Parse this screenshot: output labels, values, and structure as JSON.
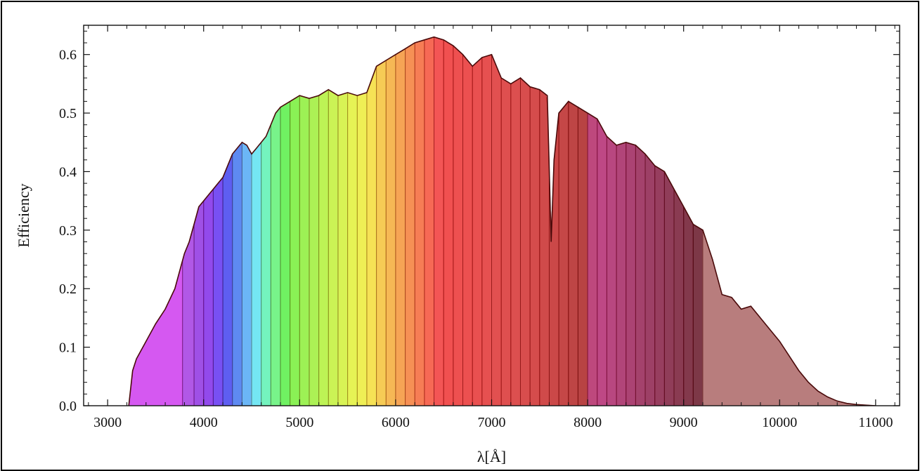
{
  "chart_data": {
    "type": "area",
    "title": "",
    "xlabel": "λ[Å]",
    "ylabel": "Efficiency",
    "xlim": [
      2750,
      11250
    ],
    "ylim": [
      0,
      0.65
    ],
    "x_ticks": [
      3000,
      4000,
      5000,
      6000,
      7000,
      8000,
      9000,
      10000,
      11000
    ],
    "x_tick_labels": [
      "3000",
      "4000",
      "5000",
      "6000",
      "7000",
      "8000",
      "9000",
      "10000",
      "11000"
    ],
    "y_ticks": [
      0,
      0.1,
      0.2,
      0.3,
      0.4,
      0.5,
      0.6
    ],
    "y_tick_labels": [
      "0.0",
      "0.1",
      "0.2",
      "0.3",
      "0.4",
      "0.5",
      "0.6"
    ],
    "grid": false,
    "legend": "none",
    "envelope": {
      "x": [
        3220,
        3260,
        3300,
        3400,
        3500,
        3600,
        3700,
        3750,
        3800,
        3850,
        3900,
        3950,
        4000,
        4050,
        4100,
        4150,
        4200,
        4250,
        4300,
        4350,
        4400,
        4450,
        4500,
        4550,
        4600,
        4650,
        4700,
        4750,
        4800,
        4900,
        5000,
        5100,
        5200,
        5300,
        5400,
        5500,
        5600,
        5700,
        5800,
        5900,
        6000,
        6100,
        6200,
        6300,
        6400,
        6500,
        6600,
        6700,
        6800,
        6900,
        7000,
        7100,
        7200,
        7300,
        7400,
        7500,
        7580,
        7620,
        7650,
        7700,
        7800,
        7900,
        8000,
        8100,
        8200,
        8300,
        8400,
        8500,
        8600,
        8700,
        8800,
        8900,
        9000,
        9100,
        9200,
        9300,
        9400,
        9500,
        9600,
        9700,
        9800,
        9900,
        10000,
        10100,
        10200,
        10300,
        10400,
        10500,
        10600,
        10700,
        10800,
        10900,
        11000
      ],
      "y": [
        0.0,
        0.06,
        0.08,
        0.11,
        0.14,
        0.165,
        0.2,
        0.23,
        0.26,
        0.28,
        0.31,
        0.34,
        0.35,
        0.36,
        0.37,
        0.38,
        0.39,
        0.41,
        0.43,
        0.44,
        0.45,
        0.445,
        0.43,
        0.44,
        0.45,
        0.46,
        0.48,
        0.5,
        0.51,
        0.52,
        0.53,
        0.525,
        0.53,
        0.54,
        0.53,
        0.535,
        0.53,
        0.535,
        0.58,
        0.59,
        0.6,
        0.61,
        0.62,
        0.625,
        0.63,
        0.625,
        0.615,
        0.6,
        0.58,
        0.595,
        0.6,
        0.56,
        0.55,
        0.56,
        0.545,
        0.54,
        0.53,
        0.28,
        0.42,
        0.5,
        0.52,
        0.51,
        0.5,
        0.49,
        0.46,
        0.445,
        0.45,
        0.445,
        0.43,
        0.41,
        0.4,
        0.37,
        0.34,
        0.31,
        0.3,
        0.25,
        0.19,
        0.185,
        0.165,
        0.17,
        0.15,
        0.13,
        0.11,
        0.085,
        0.06,
        0.04,
        0.025,
        0.015,
        0.008,
        0.004,
        0.002,
        0.001,
        0.0
      ]
    },
    "filter_bands": [
      {
        "from": 3220,
        "to": 3780,
        "color": "#cc33ee"
      },
      {
        "from": 3780,
        "to": 3900,
        "color": "#a033e0"
      },
      {
        "from": 3900,
        "to": 4000,
        "color": "#8a2ae0"
      },
      {
        "from": 4000,
        "to": 4100,
        "color": "#7a22e8"
      },
      {
        "from": 4100,
        "to": 4200,
        "color": "#5a2af0"
      },
      {
        "from": 4200,
        "to": 4300,
        "color": "#3a3aee"
      },
      {
        "from": 4300,
        "to": 4400,
        "color": "#3a70ee"
      },
      {
        "from": 4400,
        "to": 4500,
        "color": "#4aa6f4"
      },
      {
        "from": 4500,
        "to": 4600,
        "color": "#55e0f0"
      },
      {
        "from": 4600,
        "to": 4700,
        "color": "#55f0b0"
      },
      {
        "from": 4700,
        "to": 4800,
        "color": "#5af070"
      },
      {
        "from": 4800,
        "to": 4900,
        "color": "#50ee40"
      },
      {
        "from": 4900,
        "to": 5000,
        "color": "#70ee30"
      },
      {
        "from": 5000,
        "to": 5100,
        "color": "#88ee30"
      },
      {
        "from": 5100,
        "to": 5200,
        "color": "#9aee30"
      },
      {
        "from": 5200,
        "to": 5300,
        "color": "#aef030"
      },
      {
        "from": 5300,
        "to": 5400,
        "color": "#c0f030"
      },
      {
        "from": 5400,
        "to": 5500,
        "color": "#d0f030"
      },
      {
        "from": 5500,
        "to": 5600,
        "color": "#e0f030"
      },
      {
        "from": 5600,
        "to": 5700,
        "color": "#ecec30"
      },
      {
        "from": 5700,
        "to": 5800,
        "color": "#f4dc30"
      },
      {
        "from": 5800,
        "to": 5900,
        "color": "#f4c030"
      },
      {
        "from": 5900,
        "to": 6000,
        "color": "#f4a830"
      },
      {
        "from": 6000,
        "to": 6100,
        "color": "#f49030"
      },
      {
        "from": 6100,
        "to": 6200,
        "color": "#f47830"
      },
      {
        "from": 6200,
        "to": 6300,
        "color": "#f46030"
      },
      {
        "from": 6300,
        "to": 6400,
        "color": "#f44830"
      },
      {
        "from": 6400,
        "to": 6500,
        "color": "#f03030"
      },
      {
        "from": 6500,
        "to": 6600,
        "color": "#ee2a2a"
      },
      {
        "from": 6600,
        "to": 6700,
        "color": "#ea2a2a"
      },
      {
        "from": 6700,
        "to": 6800,
        "color": "#e82a2a"
      },
      {
        "from": 6800,
        "to": 6900,
        "color": "#e42a2a"
      },
      {
        "from": 6900,
        "to": 7000,
        "color": "#e02a2a"
      },
      {
        "from": 7000,
        "to": 7100,
        "color": "#dc2a2a"
      },
      {
        "from": 7100,
        "to": 7200,
        "color": "#d82828"
      },
      {
        "from": 7200,
        "to": 7300,
        "color": "#d42828"
      },
      {
        "from": 7300,
        "to": 7400,
        "color": "#d02626"
      },
      {
        "from": 7400,
        "to": 7500,
        "color": "#cc2424"
      },
      {
        "from": 7500,
        "to": 7600,
        "color": "#c62222"
      },
      {
        "from": 7600,
        "to": 7700,
        "color": "#c02020"
      },
      {
        "from": 7700,
        "to": 7800,
        "color": "#b81e1e"
      },
      {
        "from": 7800,
        "to": 7900,
        "color": "#b01c1c"
      },
      {
        "from": 7900,
        "to": 8000,
        "color": "#a81a1a"
      },
      {
        "from": 8000,
        "to": 8100,
        "color": "#b02060"
      },
      {
        "from": 8100,
        "to": 8200,
        "color": "#b0206a"
      },
      {
        "from": 8200,
        "to": 8300,
        "color": "#a81e64"
      },
      {
        "from": 8300,
        "to": 8400,
        "color": "#a01c5c"
      },
      {
        "from": 8400,
        "to": 8500,
        "color": "#981a54"
      },
      {
        "from": 8500,
        "to": 8600,
        "color": "#90184c"
      },
      {
        "from": 8600,
        "to": 8700,
        "color": "#881644"
      },
      {
        "from": 8700,
        "to": 8800,
        "color": "#80143c"
      },
      {
        "from": 8800,
        "to": 8900,
        "color": "#781234"
      },
      {
        "from": 8900,
        "to": 9000,
        "color": "#70102c"
      },
      {
        "from": 9000,
        "to": 9100,
        "color": "#680e24"
      },
      {
        "from": 9100,
        "to": 9200,
        "color": "#600c1e"
      },
      {
        "from": 9200,
        "to": 11000,
        "color": "#a86060"
      }
    ],
    "colors": {
      "envelope_stroke": "#4a0a0a",
      "axis": "#111111"
    }
  }
}
